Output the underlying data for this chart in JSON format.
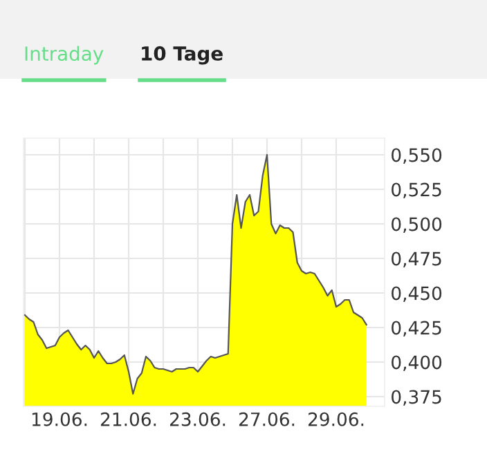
{
  "chart_data": {
    "type": "area",
    "annotations": [
      "Intraday",
      "10 Tage"
    ],
    "categories": [
      null,
      null,
      null,
      null,
      null,
      null,
      null,
      null,
      "19.06.",
      null,
      null,
      null,
      null,
      null,
      null,
      null,
      null,
      null,
      null,
      null,
      null,
      null,
      null,
      null,
      "21.06.",
      null,
      null,
      null,
      null,
      null,
      null,
      null,
      null,
      null,
      null,
      null,
      null,
      null,
      null,
      null,
      "23.06.",
      null,
      null,
      null,
      null,
      null,
      null,
      null,
      null,
      null,
      null,
      null,
      null,
      null,
      null,
      null,
      "27.06.",
      null,
      null,
      null,
      null,
      null,
      null,
      null,
      null,
      null,
      null,
      null,
      null,
      null,
      null,
      null,
      "29.06.",
      null,
      null,
      null,
      null,
      null,
      null,
      null
    ],
    "series": [
      {
        "color": "#ffff00",
        "values": [
          0.434,
          0.431,
          0.429,
          0.42,
          0.416,
          0.41,
          0.411,
          0.412,
          0.418,
          0.421,
          0.423,
          0.418,
          0.413,
          0.409,
          0.412,
          0.409,
          0.403,
          0.408,
          0.403,
          0.399,
          0.399,
          0.4,
          0.402,
          0.405,
          0.393,
          0.377,
          0.388,
          0.392,
          0.404,
          0.401,
          0.396,
          0.395,
          0.395,
          0.394,
          0.393,
          0.395,
          0.395,
          0.395,
          0.396,
          0.396,
          0.393,
          0.397,
          0.401,
          0.404,
          0.403,
          0.404,
          0.405,
          0.406,
          0.5,
          0.521,
          0.497,
          0.516,
          0.521,
          0.506,
          0.509,
          0.535,
          0.55,
          0.5,
          0.493,
          0.499,
          0.497,
          0.497,
          0.494,
          0.472,
          0.466,
          0.464,
          0.465,
          0.464,
          0.459,
          0.454,
          0.448,
          0.452,
          0.44,
          0.442,
          0.445,
          0.445,
          0.436,
          0.434,
          0.432,
          0.427
        ]
      }
    ],
    "ylim": [
      0.368,
      0.562
    ],
    "yticks": [
      {
        "value": 0.375,
        "label": "0,375"
      },
      {
        "value": 0.4,
        "label": "0,400"
      },
      {
        "value": 0.425,
        "label": "0,425"
      },
      {
        "value": 0.45,
        "label": "0,450"
      },
      {
        "value": 0.475,
        "label": "0,475"
      },
      {
        "value": 0.5,
        "label": "0,500"
      },
      {
        "value": 0.525,
        "label": "0,525"
      },
      {
        "value": 0.55,
        "label": "0,550"
      }
    ],
    "grid": true
  }
}
